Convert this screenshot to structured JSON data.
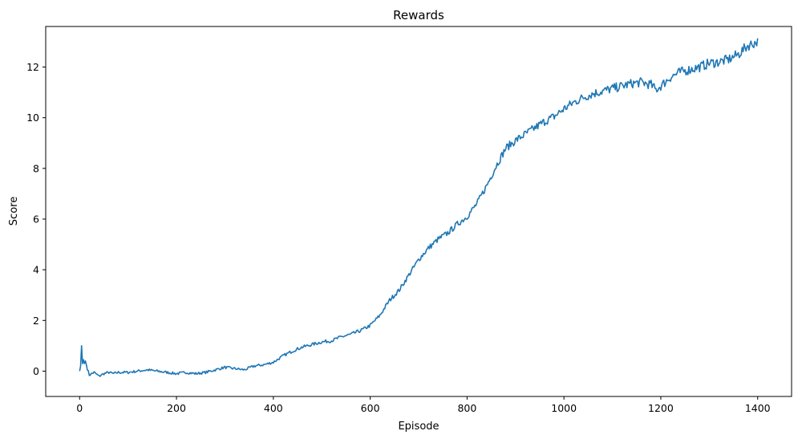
{
  "chart_data": {
    "type": "line",
    "title": "Rewards",
    "xlabel": "Episode",
    "ylabel": "Score",
    "xlim": [
      -70,
      1470
    ],
    "ylim": [
      -1.0,
      13.6
    ],
    "xticks": [
      0,
      200,
      400,
      600,
      800,
      1000,
      1200,
      1400
    ],
    "yticks": [
      0,
      2,
      4,
      6,
      8,
      10,
      12
    ],
    "grid": false,
    "series": [
      {
        "name": "Score",
        "color": "#1f77b4",
        "anchors": [
          [
            0,
            0.0
          ],
          [
            2,
            0.2
          ],
          [
            4,
            1.0
          ],
          [
            6,
            0.3
          ],
          [
            8,
            0.45
          ],
          [
            10,
            0.3
          ],
          [
            12,
            0.4
          ],
          [
            16,
            0.1
          ],
          [
            20,
            -0.15
          ],
          [
            25,
            -0.1
          ],
          [
            30,
            -0.05
          ],
          [
            40,
            -0.2
          ],
          [
            50,
            -0.1
          ],
          [
            60,
            -0.05
          ],
          [
            70,
            -0.1
          ],
          [
            80,
            -0.05
          ],
          [
            100,
            -0.05
          ],
          [
            120,
            0.0
          ],
          [
            140,
            0.05
          ],
          [
            160,
            0.0
          ],
          [
            180,
            -0.05
          ],
          [
            200,
            -0.1
          ],
          [
            220,
            -0.05
          ],
          [
            240,
            -0.1
          ],
          [
            260,
            -0.05
          ],
          [
            280,
            0.05
          ],
          [
            300,
            0.15
          ],
          [
            320,
            0.1
          ],
          [
            340,
            0.05
          ],
          [
            360,
            0.2
          ],
          [
            380,
            0.25
          ],
          [
            400,
            0.35
          ],
          [
            420,
            0.6
          ],
          [
            440,
            0.8
          ],
          [
            460,
            0.95
          ],
          [
            480,
            1.05
          ],
          [
            500,
            1.15
          ],
          [
            520,
            1.2
          ],
          [
            540,
            1.35
          ],
          [
            560,
            1.45
          ],
          [
            580,
            1.6
          ],
          [
            600,
            1.8
          ],
          [
            620,
            2.2
          ],
          [
            640,
            2.8
          ],
          [
            660,
            3.2
          ],
          [
            680,
            3.8
          ],
          [
            700,
            4.4
          ],
          [
            720,
            4.85
          ],
          [
            740,
            5.2
          ],
          [
            760,
            5.45
          ],
          [
            780,
            5.8
          ],
          [
            800,
            6.1
          ],
          [
            820,
            6.6
          ],
          [
            840,
            7.3
          ],
          [
            860,
            8.1
          ],
          [
            880,
            8.8
          ],
          [
            900,
            9.1
          ],
          [
            920,
            9.35
          ],
          [
            940,
            9.6
          ],
          [
            960,
            9.85
          ],
          [
            980,
            10.05
          ],
          [
            1000,
            10.35
          ],
          [
            1020,
            10.6
          ],
          [
            1040,
            10.8
          ],
          [
            1060,
            10.95
          ],
          [
            1080,
            11.05
          ],
          [
            1100,
            11.15
          ],
          [
            1120,
            11.25
          ],
          [
            1140,
            11.35
          ],
          [
            1160,
            11.4
          ],
          [
            1180,
            11.3
          ],
          [
            1190,
            11.1
          ],
          [
            1200,
            11.25
          ],
          [
            1220,
            11.6
          ],
          [
            1240,
            11.8
          ],
          [
            1260,
            11.9
          ],
          [
            1280,
            12.0
          ],
          [
            1300,
            12.15
          ],
          [
            1320,
            12.2
          ],
          [
            1340,
            12.3
          ],
          [
            1360,
            12.5
          ],
          [
            1380,
            12.85
          ],
          [
            1400,
            13.0
          ]
        ]
      }
    ]
  }
}
